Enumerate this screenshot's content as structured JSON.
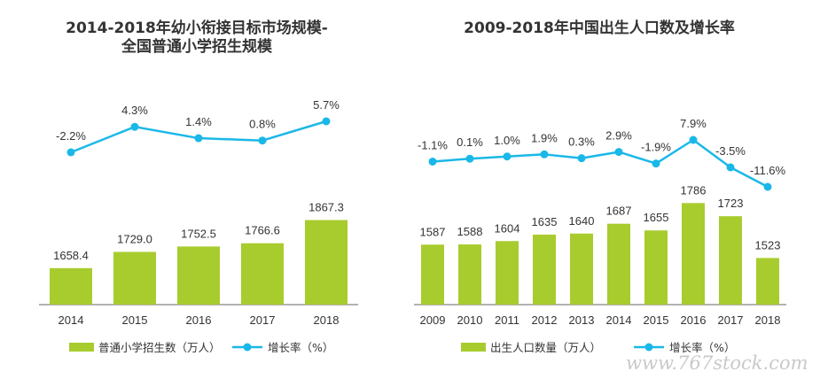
{
  "colors": {
    "bar": "#a8cc2e",
    "line": "#1ab8e8",
    "axis": "#666666",
    "text": "#333333"
  },
  "watermark": "www.767stock.com",
  "chart_data": [
    {
      "type": "bar",
      "title_lines": [
        "2014-2018年幼小衔接目标市场规模-",
        "全国普通小学招生规模"
      ],
      "categories": [
        "2014",
        "2015",
        "2016",
        "2017",
        "2018"
      ],
      "series": [
        {
          "name": "普通小学招生数（万人）",
          "type": "bar",
          "values": [
            1658.4,
            1729.0,
            1752.5,
            1766.6,
            1867.3
          ]
        },
        {
          "name": "增长率（%）",
          "type": "line",
          "values": [
            -2.2,
            4.3,
            1.4,
            0.8,
            5.7
          ]
        }
      ],
      "bar_labels": [
        "1658.4",
        "1729.0",
        "1752.5",
        "1766.6",
        "1867.3"
      ],
      "line_labels": [
        "-2.2%",
        "4.3%",
        "1.4%",
        "0.8%",
        "5.7%"
      ],
      "legend": [
        "普通小学招生数（万人）",
        "增长率（%）"
      ],
      "legend_position": "bottom",
      "grid": false
    },
    {
      "type": "bar",
      "title_lines": [
        "2009-2018年中国出生人口数及增长率"
      ],
      "categories": [
        "2009",
        "2010",
        "2011",
        "2012",
        "2013",
        "2014",
        "2015",
        "2016",
        "2017",
        "2018"
      ],
      "series": [
        {
          "name": "出生人口数量（万人）",
          "type": "bar",
          "values": [
            1587,
            1588,
            1604,
            1635,
            1640,
            1687,
            1655,
            1786,
            1723,
            1523
          ]
        },
        {
          "name": "增长率（%）",
          "type": "line",
          "values": [
            -1.1,
            0.1,
            1.0,
            1.9,
            0.3,
            2.9,
            -1.9,
            7.9,
            -3.5,
            -11.6
          ]
        }
      ],
      "bar_labels": [
        "1587",
        "1588",
        "1604",
        "1635",
        "1640",
        "1687",
        "1655",
        "1786",
        "1723",
        "1523"
      ],
      "line_labels": [
        "-1.1%",
        "0.1%",
        "1.0%",
        "1.9%",
        "0.3%",
        "2.9%",
        "-1.9%",
        "7.9%",
        "-3.5%",
        "-11.6%"
      ],
      "legend": [
        "出生人口数量（万人）",
        "增长率（%）"
      ],
      "legend_position": "bottom",
      "grid": false
    }
  ]
}
